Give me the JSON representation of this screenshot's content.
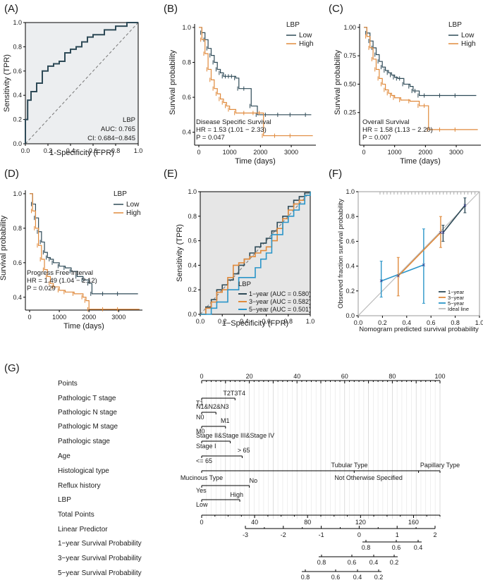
{
  "panels": {
    "A": "(A)",
    "B": "(B)",
    "C": "(C)",
    "D": "(D)",
    "E": "(E)",
    "F": "(F)",
    "G": "(G)"
  },
  "chart_data": [
    {
      "id": "A",
      "type": "line",
      "subtype": "roc",
      "xlabel": "1-Specificity (FPR)",
      "ylabel": "Sensitivity (TPR)",
      "xlim": [
        0,
        1
      ],
      "ylim": [
        0,
        1
      ],
      "xticks": [
        "0.0",
        "0.2",
        "0.4",
        "0.6",
        "0.8",
        "1.0"
      ],
      "yticks": [
        "0.0",
        "0.2",
        "0.4",
        "0.6",
        "0.8",
        "1.0"
      ],
      "series": [
        {
          "name": "LBP",
          "color": "#2e4a57",
          "x": [
            0,
            0,
            0.02,
            0.02,
            0.05,
            0.05,
            0.1,
            0.1,
            0.15,
            0.15,
            0.2,
            0.2,
            0.25,
            0.25,
            0.3,
            0.3,
            0.35,
            0.35,
            0.4,
            0.4,
            0.45,
            0.45,
            0.5,
            0.5,
            0.55,
            0.55,
            0.6,
            0.6,
            0.7,
            0.7,
            0.8,
            0.8,
            0.9,
            0.9,
            1.0
          ],
          "y": [
            0,
            0.2,
            0.2,
            0.36,
            0.36,
            0.43,
            0.43,
            0.5,
            0.5,
            0.6,
            0.6,
            0.64,
            0.64,
            0.66,
            0.66,
            0.68,
            0.68,
            0.75,
            0.75,
            0.78,
            0.78,
            0.8,
            0.8,
            0.84,
            0.84,
            0.88,
            0.88,
            0.9,
            0.9,
            0.94,
            0.94,
            0.97,
            0.97,
            1.0,
            1.0
          ]
        }
      ],
      "annotations": [
        "LBP",
        "AUC: 0.765",
        "CI: 0.684−0.845"
      ]
    },
    {
      "id": "B",
      "type": "line",
      "subtype": "kaplan-meier",
      "xlabel": "Time (days)",
      "ylabel": "Survival probability",
      "xlim": [
        0,
        3800
      ],
      "ylim": [
        0.35,
        1.02
      ],
      "xticks": [
        "0",
        "1000",
        "2000",
        "3000"
      ],
      "yticks": [
        "0.4",
        "0.6",
        "0.8",
        "1.0"
      ],
      "legend_title": "LBP",
      "series": [
        {
          "name": "Low",
          "color": "#2e4a57",
          "x": [
            0,
            100,
            200,
            300,
            400,
            500,
            600,
            700,
            800,
            900,
            1000,
            1100,
            1200,
            1300,
            1500,
            1700,
            1900,
            2200,
            2600,
            3000,
            3500,
            3650
          ],
          "y": [
            1.0,
            0.97,
            0.93,
            0.88,
            0.84,
            0.8,
            0.76,
            0.74,
            0.72,
            0.72,
            0.72,
            0.72,
            0.71,
            0.65,
            0.65,
            0.55,
            0.5,
            0.5,
            0.5,
            0.5,
            0.5,
            0.5
          ]
        },
        {
          "name": "High",
          "color": "#e08a3c",
          "x": [
            0,
            100,
            200,
            300,
            400,
            500,
            600,
            700,
            800,
            900,
            1000,
            1200,
            1500,
            1800,
            2000,
            2100,
            2500,
            3000,
            3700
          ],
          "y": [
            1.0,
            0.93,
            0.85,
            0.76,
            0.7,
            0.65,
            0.62,
            0.59,
            0.57,
            0.55,
            0.53,
            0.51,
            0.51,
            0.51,
            0.51,
            0.38,
            0.38,
            0.38,
            0.38
          ]
        }
      ],
      "annotations": [
        "Disease Specific Survival",
        "HR = 1.53 (1.01 − 2.33)",
        "P = 0.047"
      ]
    },
    {
      "id": "C",
      "type": "line",
      "subtype": "kaplan-meier",
      "xlabel": "Time (days)",
      "ylabel": "Survival probability",
      "xlim": [
        0,
        3800
      ],
      "ylim": [
        0.0,
        1.03
      ],
      "xticks": [
        "0",
        "1000",
        "2000",
        "3000"
      ],
      "yticks": [
        "0.25",
        "0.50",
        "0.75",
        "1.00"
      ],
      "legend_title": "LBP",
      "series": [
        {
          "name": "Low",
          "color": "#2e4a57",
          "x": [
            0,
            100,
            200,
            300,
            400,
            500,
            600,
            700,
            800,
            900,
            1000,
            1100,
            1200,
            1300,
            1500,
            1600,
            1700,
            1800,
            2000,
            2500,
            3000,
            3650
          ],
          "y": [
            1.0,
            0.95,
            0.88,
            0.82,
            0.76,
            0.7,
            0.65,
            0.62,
            0.6,
            0.58,
            0.56,
            0.55,
            0.55,
            0.5,
            0.48,
            0.44,
            0.44,
            0.4,
            0.4,
            0.4,
            0.4,
            0.4
          ]
        },
        {
          "name": "High",
          "color": "#e08a3c",
          "x": [
            0,
            100,
            200,
            300,
            400,
            500,
            600,
            700,
            800,
            900,
            1000,
            1200,
            1500,
            1800,
            2000,
            2100,
            2500,
            3000,
            3700
          ],
          "y": [
            1.0,
            0.92,
            0.82,
            0.72,
            0.63,
            0.55,
            0.5,
            0.45,
            0.42,
            0.4,
            0.38,
            0.36,
            0.35,
            0.31,
            0.31,
            0.1,
            0.1,
            0.1,
            0.1
          ]
        }
      ],
      "annotations": [
        "Overall Survival",
        "HR = 1.58 (1.13 − 2.20)",
        "P = 0.007"
      ]
    },
    {
      "id": "D",
      "type": "line",
      "subtype": "kaplan-meier",
      "xlabel": "Time (days)",
      "ylabel": "Survival probability",
      "xlim": [
        0,
        3800
      ],
      "ylim": [
        0.35,
        1.02
      ],
      "xticks": [
        "0",
        "1000",
        "2000",
        "3000"
      ],
      "yticks": [
        "0.4",
        "0.6",
        "0.8",
        "1.0"
      ],
      "legend_title": "LBP",
      "series": [
        {
          "name": "Low",
          "color": "#2e4a57",
          "x": [
            0,
            100,
            200,
            300,
            400,
            500,
            600,
            700,
            800,
            1000,
            1200,
            1400,
            1600,
            1800,
            2000,
            2100,
            2500,
            3000,
            3650
          ],
          "y": [
            1.0,
            0.94,
            0.86,
            0.78,
            0.72,
            0.66,
            0.63,
            0.62,
            0.6,
            0.58,
            0.57,
            0.55,
            0.52,
            0.5,
            0.48,
            0.42,
            0.42,
            0.42,
            0.42
          ]
        },
        {
          "name": "High",
          "color": "#e08a3c",
          "x": [
            0,
            100,
            200,
            300,
            400,
            500,
            600,
            700,
            800,
            1000,
            1200,
            1500,
            1800,
            1900,
            2000,
            2500,
            3000,
            3700
          ],
          "y": [
            1.0,
            0.9,
            0.8,
            0.7,
            0.62,
            0.56,
            0.52,
            0.48,
            0.46,
            0.44,
            0.43,
            0.42,
            0.4,
            0.38,
            0.33,
            0.33,
            0.33,
            0.33
          ]
        }
      ],
      "annotations": [
        "Progress Free Interval",
        "HR = 1.49 (1.04 − 2.12)",
        "P = 0.029"
      ]
    },
    {
      "id": "E",
      "type": "line",
      "subtype": "roc",
      "xlabel": "1−Specificity (FPR)",
      "ylabel": "Sensitivity (TPR)",
      "xlim": [
        0,
        1
      ],
      "ylim": [
        0,
        1
      ],
      "xticks": [
        "0.0",
        "0.2",
        "0.4",
        "0.6",
        "0.8",
        "1.0"
      ],
      "yticks": [
        "0.0",
        "0.2",
        "0.4",
        "0.6",
        "0.8",
        "1.0"
      ],
      "legend_title": "LBP",
      "series": [
        {
          "name": "1−year (AUC = 0.580)",
          "color": "#2e4a57",
          "x": [
            0,
            0.05,
            0.1,
            0.15,
            0.2,
            0.25,
            0.3,
            0.35,
            0.4,
            0.45,
            0.5,
            0.55,
            0.6,
            0.65,
            0.7,
            0.75,
            0.8,
            0.85,
            0.9,
            0.95,
            1.0
          ],
          "y": [
            0,
            0.06,
            0.12,
            0.2,
            0.24,
            0.28,
            0.33,
            0.4,
            0.45,
            0.5,
            0.55,
            0.58,
            0.62,
            0.68,
            0.75,
            0.8,
            0.88,
            0.93,
            0.96,
            0.99,
            1.0
          ]
        },
        {
          "name": "3−year (AUC = 0.582)",
          "color": "#e08a3c",
          "x": [
            0,
            0.05,
            0.1,
            0.15,
            0.2,
            0.25,
            0.3,
            0.35,
            0.4,
            0.45,
            0.5,
            0.55,
            0.6,
            0.65,
            0.7,
            0.75,
            0.8,
            0.85,
            0.9,
            0.95,
            1.0
          ],
          "y": [
            0,
            0.05,
            0.1,
            0.18,
            0.2,
            0.3,
            0.4,
            0.42,
            0.45,
            0.47,
            0.5,
            0.52,
            0.55,
            0.6,
            0.7,
            0.78,
            0.85,
            0.9,
            0.93,
            0.97,
            1.0
          ]
        },
        {
          "name": "5−year (AUC = 0.501)",
          "color": "#2a95c9",
          "x": [
            0,
            0.05,
            0.1,
            0.15,
            0.2,
            0.25,
            0.3,
            0.35,
            0.4,
            0.45,
            0.5,
            0.55,
            0.6,
            0.65,
            0.7,
            0.75,
            0.8,
            0.85,
            0.9,
            0.95,
            1.0
          ],
          "y": [
            0,
            0.0,
            0.05,
            0.1,
            0.1,
            0.2,
            0.2,
            0.3,
            0.3,
            0.3,
            0.38,
            0.45,
            0.5,
            0.65,
            0.65,
            0.75,
            0.8,
            0.85,
            0.9,
            0.97,
            1.0
          ]
        }
      ]
    },
    {
      "id": "F",
      "type": "line",
      "subtype": "calibration",
      "xlabel": "Nomogram predicted survival probability",
      "ylabel": "Observed fraction survival probability",
      "xlim": [
        0,
        1
      ],
      "ylim": [
        0,
        1
      ],
      "xticks": [
        "0.0",
        "0.2",
        "0.4",
        "0.6",
        "0.8",
        "1.0"
      ],
      "yticks": [
        "0.0",
        "0.2",
        "0.4",
        "0.6",
        "0.8",
        "1.0"
      ],
      "series": [
        {
          "name": "1−year",
          "color": "#2e4a57",
          "x": [
            0.7,
            0.88
          ],
          "y": [
            0.67,
            0.89
          ],
          "err_low": [
            0.6,
            0.83
          ],
          "err_high": [
            0.73,
            0.95
          ]
        },
        {
          "name": "3−year",
          "color": "#e08a3c",
          "x": [
            0.33,
            0.68
          ],
          "y": [
            0.32,
            0.67
          ],
          "err_low": [
            0.16,
            0.55
          ],
          "err_high": [
            0.47,
            0.8
          ]
        },
        {
          "name": "5−year",
          "color": "#2a95c9",
          "x": [
            0.19,
            0.54
          ],
          "y": [
            0.28,
            0.41
          ],
          "err_low": [
            0.15,
            0.1
          ],
          "err_high": [
            0.44,
            0.7
          ]
        },
        {
          "name": "Ideal line",
          "color": "#bbbbbb",
          "x": [
            0,
            1
          ],
          "y": [
            0,
            1
          ]
        }
      ]
    },
    {
      "id": "G",
      "type": "nomogram",
      "rows": [
        {
          "label": "Points",
          "axis": {
            "min": 0,
            "max": 100,
            "ticks": [
              "0",
              "20",
              "40",
              "60",
              "80",
              "100"
            ]
          }
        },
        {
          "label": "Pathologic T stage",
          "levels": [
            "T2T3T4",
            "T1"
          ]
        },
        {
          "label": "Pathologic N stage",
          "levels": [
            "N1&N2&N3",
            "N0"
          ]
        },
        {
          "label": "Pathologic M stage",
          "levels": [
            "M1",
            "M0"
          ]
        },
        {
          "label": "Pathologic stage",
          "levels": [
            "Stage II&Stage III&Stage IV",
            "Stage I"
          ]
        },
        {
          "label": "Age",
          "levels": [
            "> 65",
            "<= 65"
          ]
        },
        {
          "label": "Histological type",
          "levels": [
            "Tubular Type",
            "Papillary Type",
            "Mucinous Type",
            "Not Otherwise Specified"
          ]
        },
        {
          "label": "Reflux history",
          "levels": [
            "No",
            "Yes"
          ]
        },
        {
          "label": "LBP",
          "levels": [
            "High",
            "Low"
          ]
        },
        {
          "label": "Total Points",
          "axis": {
            "ticks": [
              "0",
              "40",
              "80",
              "120",
              "160"
            ]
          }
        },
        {
          "label": "Linear Predictor",
          "axis": {
            "ticks": [
              "-3",
              "-2",
              "-1",
              "0",
              "1",
              "2"
            ]
          }
        },
        {
          "label": "1−year Survival Probability",
          "axis": {
            "ticks": [
              "0.8",
              "0.6",
              "0.4"
            ]
          }
        },
        {
          "label": "3−year Survival Probability",
          "axis": {
            "ticks": [
              "0.8",
              "0.6",
              "0.4",
              "0.2"
            ]
          }
        },
        {
          "label": "5−year Survival Probability",
          "axis": {
            "ticks": [
              "0.8",
              "0.6",
              "0.4",
              "0.2"
            ]
          }
        }
      ]
    }
  ]
}
